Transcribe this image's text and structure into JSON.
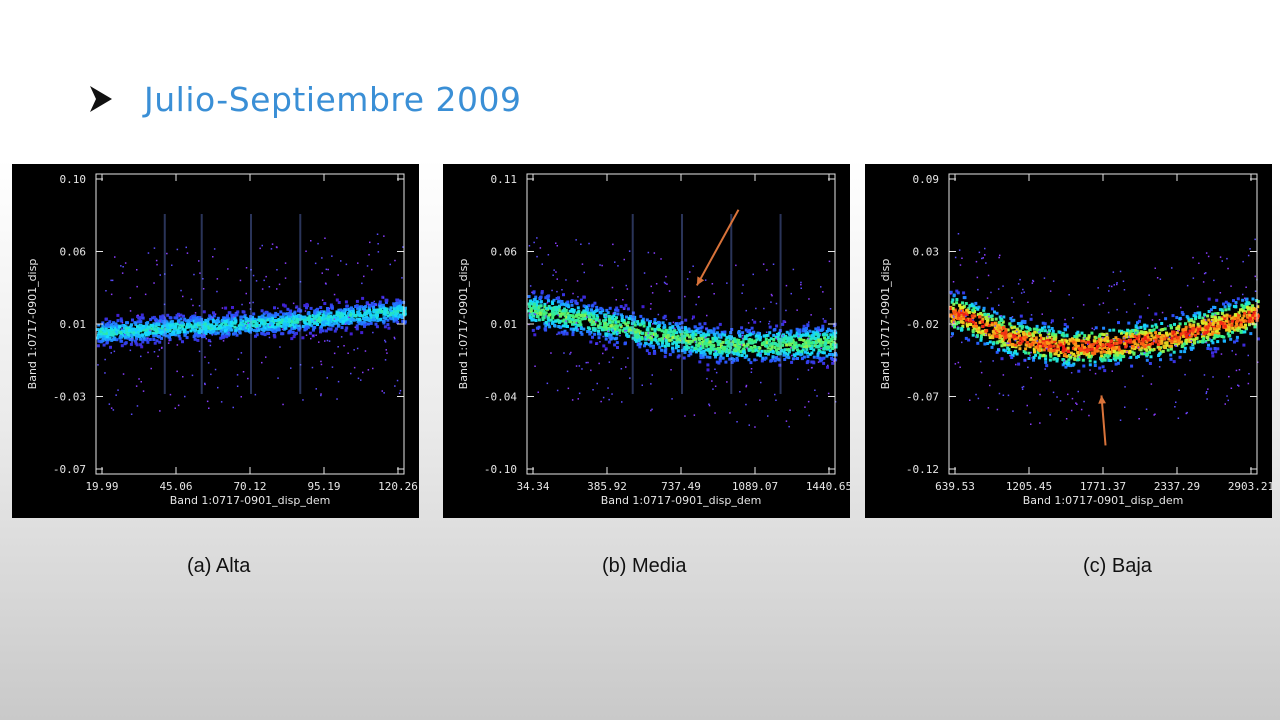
{
  "slide": {
    "title": "Julio-Septiembre 2009",
    "bullet_icon": "arrowhead-bullet-icon",
    "title_color": "#3a8fd6"
  },
  "captions": [
    "(a) Alta",
    "(b) Media",
    "(c) Baja"
  ],
  "annotation_arrow_color": "#d9733a",
  "chart_data": [
    {
      "type": "scatter",
      "style": "density-scatter",
      "title": "",
      "xlabel": "Band 1:0717-0901_disp_dem",
      "ylabel": "Band 1:0717-0901_disp",
      "xticks": [
        "19.99",
        "45.06",
        "70.12",
        "95.19",
        "120.26"
      ],
      "yticks": [
        "0.10",
        "0.06",
        "0.01",
        "-0.03",
        "-0.07"
      ],
      "xlim": [
        19.99,
        120.26
      ],
      "ylim": [
        -0.07,
        0.1
      ],
      "grid": false,
      "trend": {
        "x": [
          22,
          40,
          60,
          80,
          100,
          118
        ],
        "y": [
          0.01,
          0.012,
          0.014,
          0.016,
          0.019,
          0.022
        ]
      },
      "spread": 0.007,
      "peak_level": 0.45,
      "stripes": [
        22,
        34,
        50,
        66
      ],
      "arrow": null
    },
    {
      "type": "scatter",
      "style": "density-scatter",
      "title": "",
      "xlabel": "Band 1:0717-0901_disp_dem",
      "ylabel": "Band 1:0717-0901_disp",
      "xticks": [
        "34.34",
        "385.92",
        "737.49",
        "1089.07",
        "1440.65"
      ],
      "yticks": [
        "0.11",
        "0.06",
        "0.01",
        "-0.04",
        "-0.10"
      ],
      "xlim": [
        34.34,
        1440.65
      ],
      "ylim": [
        -0.1,
        0.11
      ],
      "grid": false,
      "trend": {
        "x": [
          34.34,
          300,
          600,
          900,
          1100,
          1440.65
        ],
        "y": [
          0.015,
          0.008,
          -0.002,
          -0.01,
          -0.01,
          -0.008
        ]
      },
      "spread": 0.012,
      "peak_level": 0.6,
      "stripes": [
        34,
        50,
        66,
        82
      ],
      "arrow": {
        "from": [
          1000,
          0.085
        ],
        "to": [
          810,
          0.032
        ]
      }
    },
    {
      "type": "scatter",
      "style": "density-scatter",
      "title": "",
      "xlabel": "Band 1:0717-0901_disp_dem",
      "ylabel": "Band 1:0717-0901_disp",
      "xticks": [
        "639.53",
        "1205.45",
        "1771.37",
        "2337.29",
        "2903.21"
      ],
      "yticks": [
        "0.09",
        "0.03",
        "-0.02",
        "-0.07",
        "-0.12"
      ],
      "xlim": [
        639.53,
        2903.21
      ],
      "ylim": [
        -0.12,
        0.09
      ],
      "grid": false,
      "trend": {
        "x": [
          700,
          1100,
          1500,
          1800,
          2200,
          2600,
          2903.21
        ],
        "y": [
          -0.008,
          -0.025,
          -0.032,
          -0.03,
          -0.026,
          -0.016,
          -0.008
        ]
      },
      "spread": 0.013,
      "peak_level": 1.0,
      "stripes": [],
      "arrow": {
        "from": [
          1790,
          -0.1
        ],
        "to": [
          1760,
          -0.065
        ]
      }
    }
  ]
}
